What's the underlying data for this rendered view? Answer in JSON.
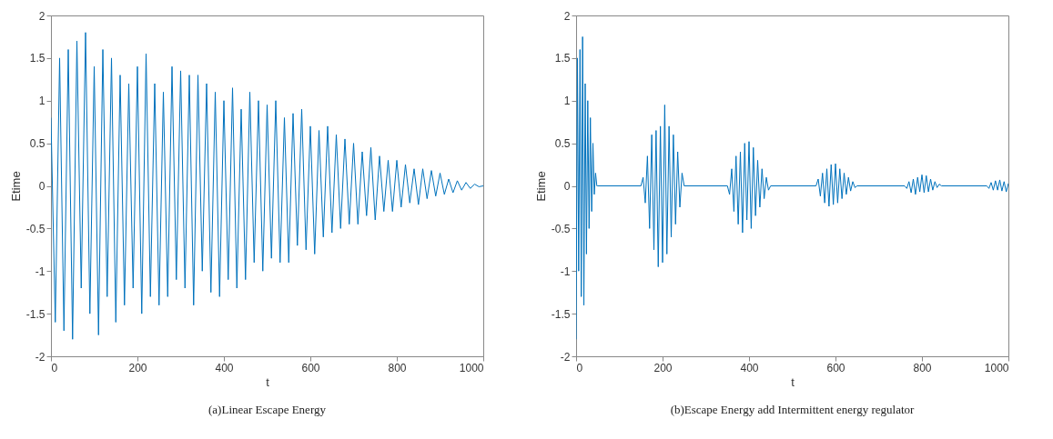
{
  "chart_data": [
    {
      "type": "line",
      "xlabel": "t",
      "ylabel": "Etime",
      "annotations": [
        "(a)Linear Escape Energy"
      ],
      "xlim": [
        0,
        1000
      ],
      "xticks": [
        0,
        200,
        400,
        600,
        800,
        1000
      ],
      "ylim": [
        -2,
        2
      ],
      "yticks": [
        -2,
        -1.5,
        -1,
        -0.5,
        0,
        0.5,
        1,
        1.5,
        2
      ],
      "grid": false,
      "x": [
        0,
        10,
        20,
        30,
        40,
        50,
        60,
        70,
        80,
        90,
        100,
        110,
        120,
        130,
        140,
        150,
        160,
        170,
        180,
        190,
        200,
        210,
        220,
        230,
        240,
        250,
        260,
        270,
        280,
        290,
        300,
        310,
        320,
        330,
        340,
        350,
        360,
        370,
        380,
        390,
        400,
        410,
        420,
        430,
        440,
        450,
        460,
        470,
        480,
        490,
        500,
        510,
        520,
        530,
        540,
        550,
        560,
        570,
        580,
        590,
        600,
        610,
        620,
        630,
        640,
        650,
        660,
        670,
        680,
        690,
        700,
        710,
        720,
        730,
        740,
        750,
        760,
        770,
        780,
        790,
        800,
        810,
        820,
        830,
        840,
        850,
        860,
        870,
        880,
        890,
        900,
        910,
        920,
        930,
        940,
        950,
        960,
        970,
        980,
        990,
        1000
      ],
      "series": [
        {
          "color": "#0072bd",
          "values": [
            0.8,
            -1.6,
            1.5,
            -1.7,
            1.6,
            -1.8,
            1.7,
            -1.2,
            1.8,
            -1.5,
            1.4,
            -1.75,
            1.6,
            -1.3,
            1.5,
            -1.6,
            1.3,
            -1.4,
            1.2,
            -1.2,
            1.4,
            -1.5,
            1.55,
            -1.3,
            1.2,
            -1.4,
            1.1,
            -1.3,
            1.4,
            -1.1,
            1.35,
            -1.2,
            1.3,
            -1.4,
            1.3,
            -1.0,
            1.2,
            -1.25,
            1.1,
            -1.3,
            1.0,
            -1.1,
            1.15,
            -1.2,
            0.9,
            -1.1,
            1.1,
            -0.9,
            1.0,
            -1.0,
            0.95,
            -0.85,
            1.0,
            -0.9,
            0.8,
            -0.9,
            0.85,
            -0.7,
            0.9,
            -0.75,
            0.7,
            -0.8,
            0.65,
            -0.6,
            0.7,
            -0.55,
            0.6,
            -0.5,
            0.55,
            -0.45,
            0.5,
            -0.45,
            0.4,
            -0.35,
            0.45,
            -0.4,
            0.35,
            -0.3,
            0.3,
            -0.3,
            0.3,
            -0.25,
            0.25,
            -0.2,
            0.2,
            -0.22,
            0.2,
            -0.15,
            0.18,
            -0.12,
            0.15,
            -0.1,
            0.08,
            -0.08,
            0.06,
            -0.05,
            0.04,
            -0.03,
            0.02,
            -0.01,
            0
          ]
        }
      ]
    },
    {
      "type": "line",
      "xlabel": "t",
      "ylabel": "Etime",
      "annotations": [
        "(b)Escape Energy add Intermittent energy regulator"
      ],
      "xlim": [
        0,
        1000
      ],
      "xticks": [
        0,
        200,
        400,
        600,
        800,
        1000
      ],
      "ylim": [
        -2,
        2
      ],
      "yticks": [
        -2,
        -1.5,
        -1,
        -0.5,
        0,
        0.5,
        1,
        1.5,
        2
      ],
      "grid": false,
      "x": [
        0,
        3,
        6,
        9,
        12,
        15,
        18,
        21,
        24,
        27,
        30,
        33,
        36,
        39,
        42,
        45,
        48,
        50,
        150,
        155,
        160,
        165,
        170,
        175,
        180,
        185,
        190,
        195,
        200,
        205,
        210,
        215,
        220,
        225,
        230,
        235,
        240,
        245,
        250,
        350,
        355,
        360,
        365,
        370,
        375,
        380,
        385,
        390,
        395,
        400,
        405,
        410,
        415,
        420,
        425,
        430,
        435,
        440,
        445,
        450,
        555,
        560,
        565,
        570,
        575,
        580,
        585,
        590,
        595,
        600,
        605,
        610,
        615,
        620,
        625,
        630,
        635,
        640,
        645,
        650,
        760,
        765,
        770,
        775,
        780,
        785,
        790,
        795,
        800,
        805,
        810,
        815,
        820,
        825,
        830,
        835,
        840,
        845,
        950,
        955,
        960,
        965,
        970,
        975,
        980,
        985,
        990,
        995,
        1000
      ],
      "series": [
        {
          "color": "#0072bd",
          "values": [
            -1.8,
            1.5,
            -1.0,
            1.6,
            -1.3,
            1.75,
            -1.4,
            1.2,
            -0.8,
            1.0,
            -0.5,
            0.8,
            -0.3,
            0.5,
            -0.1,
            0.15,
            0,
            0,
            0,
            0.1,
            -0.2,
            0.35,
            -0.5,
            0.6,
            -0.75,
            0.65,
            -0.95,
            0.7,
            -0.9,
            0.95,
            -0.8,
            0.7,
            -0.6,
            0.6,
            -0.45,
            0.4,
            -0.25,
            0.15,
            0,
            0,
            -0.1,
            0.2,
            -0.3,
            0.35,
            -0.45,
            0.4,
            -0.55,
            0.5,
            -0.4,
            0.52,
            -0.5,
            0.45,
            -0.35,
            0.3,
            -0.25,
            0.2,
            -0.15,
            0.1,
            -0.05,
            0,
            0,
            0.08,
            -0.12,
            0.15,
            -0.2,
            0.2,
            -0.24,
            0.25,
            -0.22,
            0.26,
            -0.2,
            0.2,
            -0.15,
            0.15,
            -0.1,
            0.1,
            -0.06,
            0.05,
            -0.02,
            0,
            0,
            -0.03,
            0.05,
            -0.08,
            0.08,
            -0.1,
            0.1,
            -0.07,
            0.13,
            -0.08,
            0.12,
            -0.07,
            0.08,
            -0.05,
            0.05,
            -0.02,
            0.02,
            0,
            0,
            -0.03,
            0.04,
            -0.05,
            0.06,
            -0.05,
            0.07,
            -0.06,
            0.05,
            -0.07,
            0.03
          ]
        }
      ]
    }
  ]
}
